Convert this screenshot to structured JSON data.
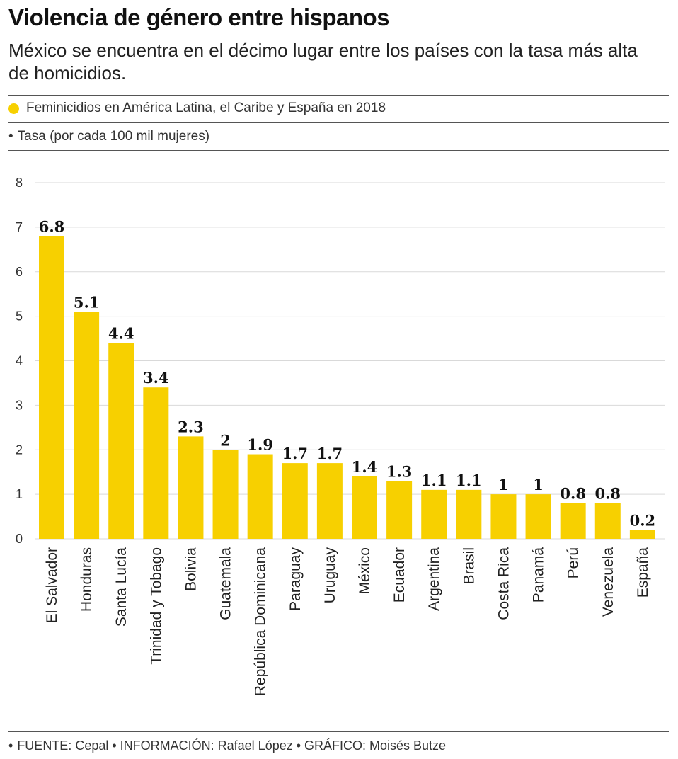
{
  "header": {
    "title": "Violencia de género entre hispanos",
    "subtitle": "México se encuentra en el décimo lugar entre los países con la tasa más alta de homicidios."
  },
  "legend": {
    "series_label": "Feminicidios en América Latina, el Caribe y España en 2018",
    "rate_bullet": "•",
    "rate_label": "Tasa (por cada 100 mil mujeres)"
  },
  "footer": {
    "bullet": "•",
    "text": "FUENTE: Cepal • INFORMACIÓN: Rafael López • GRÁFICO: Moisés Butze"
  },
  "colors": {
    "bar": "#f7d000",
    "grid": "#d9d9d9"
  },
  "chart_data": {
    "type": "bar",
    "categories": [
      "El Salvador",
      "Honduras",
      "Santa Lucía",
      "Trinidad y Tobago",
      "Bolivia",
      "Guatemala",
      "República Dominicana",
      "Paraguay",
      "Uruguay",
      "México",
      "Ecuador",
      "Argentina",
      "Brasil",
      "Costa Rica",
      "Panamá",
      "Perú",
      "Venezuela",
      "España"
    ],
    "values": [
      6.8,
      5.1,
      4.4,
      3.4,
      2.3,
      2,
      1.9,
      1.7,
      1.7,
      1.4,
      1.3,
      1.1,
      1.1,
      1,
      1,
      0.8,
      0.8,
      0.2
    ],
    "value_labels": [
      "6.8",
      "5.1",
      "4.4",
      "3.4",
      "2.3",
      "2",
      "1.9",
      "1.7",
      "1.7",
      "1.4",
      "1.3",
      "1.1",
      "1.1",
      "1",
      "1",
      "0.8",
      "0.8",
      "0.2"
    ],
    "yticks": [
      0,
      1,
      2,
      3,
      4,
      5,
      6,
      7,
      8
    ],
    "ylim": [
      0,
      8
    ],
    "grid": true
  }
}
